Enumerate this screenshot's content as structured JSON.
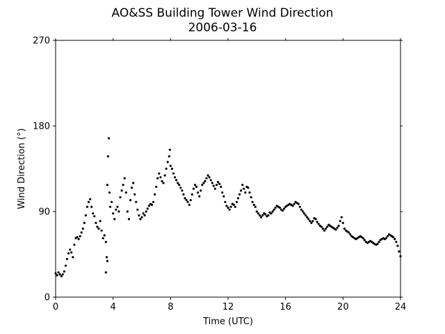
{
  "chart_data": {
    "type": "scatter",
    "title": "AO&SS Building Tower Wind Direction",
    "subtitle": "2006-03-16",
    "xlabel": "Time (UTC)",
    "ylabel": "Wind Direction (°)",
    "xlim": [
      0,
      24
    ],
    "ylim": [
      0,
      270
    ],
    "xticks": [
      0,
      4,
      8,
      12,
      16,
      20,
      24
    ],
    "yticks": [
      0,
      90,
      180,
      270
    ],
    "grid": false,
    "marker_color": "#000000",
    "series": [
      {
        "points": [
          [
            0.0,
            25
          ],
          [
            0.1,
            23
          ],
          [
            0.2,
            26
          ],
          [
            0.3,
            24
          ],
          [
            0.4,
            22
          ],
          [
            0.5,
            24
          ],
          [
            0.6,
            27
          ],
          [
            0.7,
            33
          ],
          [
            0.8,
            40
          ],
          [
            0.9,
            46
          ],
          [
            1.0,
            50
          ],
          [
            1.1,
            47
          ],
          [
            1.2,
            42
          ],
          [
            1.3,
            55
          ],
          [
            1.4,
            62
          ],
          [
            1.5,
            63
          ],
          [
            1.6,
            61
          ],
          [
            1.7,
            64
          ],
          [
            1.8,
            68
          ],
          [
            1.9,
            72
          ],
          [
            2.0,
            78
          ],
          [
            2.1,
            86
          ],
          [
            2.2,
            95
          ],
          [
            2.3,
            100
          ],
          [
            2.4,
            103
          ],
          [
            2.5,
            95
          ],
          [
            2.6,
            88
          ],
          [
            2.7,
            85
          ],
          [
            2.8,
            78
          ],
          [
            2.9,
            74
          ],
          [
            3.0,
            72
          ],
          [
            3.1,
            80
          ],
          [
            3.2,
            70
          ],
          [
            3.3,
            62
          ],
          [
            3.4,
            65
          ],
          [
            3.5,
            58
          ],
          [
            3.5,
            26
          ],
          [
            3.55,
            42
          ],
          [
            3.6,
            38
          ],
          [
            3.6,
            118
          ],
          [
            3.65,
            148
          ],
          [
            3.7,
            167
          ],
          [
            3.75,
            110
          ],
          [
            3.8,
            95
          ],
          [
            3.9,
            100
          ],
          [
            4.0,
            88
          ],
          [
            4.1,
            82
          ],
          [
            4.2,
            92
          ],
          [
            4.3,
            95
          ],
          [
            4.4,
            90
          ],
          [
            4.5,
            105
          ],
          [
            4.6,
            112
          ],
          [
            4.7,
            118
          ],
          [
            4.8,
            125
          ],
          [
            4.9,
            110
          ],
          [
            5.0,
            90
          ],
          [
            5.1,
            82
          ],
          [
            5.2,
            102
          ],
          [
            5.3,
            115
          ],
          [
            5.4,
            120
          ],
          [
            5.5,
            108
          ],
          [
            5.6,
            100
          ],
          [
            5.7,
            92
          ],
          [
            5.8,
            86
          ],
          [
            5.9,
            82
          ],
          [
            6.0,
            84
          ],
          [
            6.1,
            88
          ],
          [
            6.2,
            86
          ],
          [
            6.3,
            90
          ],
          [
            6.4,
            93
          ],
          [
            6.5,
            96
          ],
          [
            6.6,
            98
          ],
          [
            6.7,
            97
          ],
          [
            6.8,
            100
          ],
          [
            6.9,
            108
          ],
          [
            7.0,
            116
          ],
          [
            7.1,
            125
          ],
          [
            7.2,
            130
          ],
          [
            7.3,
            126
          ],
          [
            7.4,
            122
          ],
          [
            7.5,
            120
          ],
          [
            7.6,
            128
          ],
          [
            7.7,
            135
          ],
          [
            7.8,
            142
          ],
          [
            7.9,
            148
          ],
          [
            7.95,
            155
          ],
          [
            8.0,
            138
          ],
          [
            8.1,
            135
          ],
          [
            8.2,
            130
          ],
          [
            8.3,
            126
          ],
          [
            8.4,
            123
          ],
          [
            8.5,
            120
          ],
          [
            8.6,
            118
          ],
          [
            8.7,
            115
          ],
          [
            8.8,
            112
          ],
          [
            8.9,
            108
          ],
          [
            9.0,
            104
          ],
          [
            9.1,
            102
          ],
          [
            9.2,
            100
          ],
          [
            9.3,
            97
          ],
          [
            9.4,
            102
          ],
          [
            9.5,
            108
          ],
          [
            9.6,
            114
          ],
          [
            9.7,
            118
          ],
          [
            9.8,
            116
          ],
          [
            9.9,
            110
          ],
          [
            10.0,
            106
          ],
          [
            10.1,
            112
          ],
          [
            10.2,
            118
          ],
          [
            10.3,
            120
          ],
          [
            10.4,
            122
          ],
          [
            10.5,
            125
          ],
          [
            10.6,
            128
          ],
          [
            10.7,
            126
          ],
          [
            10.8,
            123
          ],
          [
            10.9,
            120
          ],
          [
            11.0,
            117
          ],
          [
            11.1,
            114
          ],
          [
            11.2,
            118
          ],
          [
            11.3,
            121
          ],
          [
            11.4,
            119
          ],
          [
            11.5,
            116
          ],
          [
            11.6,
            110
          ],
          [
            11.7,
            106
          ],
          [
            11.8,
            100
          ],
          [
            11.9,
            96
          ],
          [
            12.0,
            94
          ],
          [
            12.1,
            92
          ],
          [
            12.2,
            95
          ],
          [
            12.3,
            98
          ],
          [
            12.4,
            97
          ],
          [
            12.5,
            95
          ],
          [
            12.6,
            100
          ],
          [
            12.7,
            104
          ],
          [
            12.8,
            108
          ],
          [
            12.9,
            112
          ],
          [
            13.0,
            118
          ],
          [
            13.1,
            114
          ],
          [
            13.2,
            110
          ],
          [
            13.3,
            116
          ],
          [
            13.4,
            115
          ],
          [
            13.5,
            110
          ],
          [
            13.6,
            105
          ],
          [
            13.7,
            100
          ],
          [
            13.8,
            97
          ],
          [
            13.9,
            95
          ],
          [
            14.0,
            90
          ],
          [
            14.1,
            88
          ],
          [
            14.2,
            86
          ],
          [
            14.3,
            84
          ],
          [
            14.4,
            86
          ],
          [
            14.5,
            88
          ],
          [
            14.6,
            87
          ],
          [
            14.7,
            85
          ],
          [
            14.8,
            86
          ],
          [
            14.9,
            89
          ],
          [
            15.0,
            88
          ],
          [
            15.1,
            90
          ],
          [
            15.2,
            92
          ],
          [
            15.3,
            94
          ],
          [
            15.4,
            96
          ],
          [
            15.5,
            95
          ],
          [
            15.6,
            94
          ],
          [
            15.7,
            92
          ],
          [
            15.8,
            91
          ],
          [
            15.9,
            93
          ],
          [
            16.0,
            95
          ],
          [
            16.1,
            96
          ],
          [
            16.2,
            97
          ],
          [
            16.3,
            98
          ],
          [
            16.4,
            97
          ],
          [
            16.5,
            96
          ],
          [
            16.6,
            98
          ],
          [
            16.7,
            100
          ],
          [
            16.8,
            99
          ],
          [
            16.9,
            98
          ],
          [
            17.0,
            95
          ],
          [
            17.1,
            92
          ],
          [
            17.2,
            90
          ],
          [
            17.3,
            88
          ],
          [
            17.4,
            86
          ],
          [
            17.5,
            84
          ],
          [
            17.6,
            82
          ],
          [
            17.7,
            80
          ],
          [
            17.8,
            78
          ],
          [
            17.9,
            80
          ],
          [
            18.0,
            83
          ],
          [
            18.1,
            82
          ],
          [
            18.2,
            79
          ],
          [
            18.3,
            77
          ],
          [
            18.4,
            75
          ],
          [
            18.5,
            74
          ],
          [
            18.6,
            72
          ],
          [
            18.7,
            70
          ],
          [
            18.8,
            72
          ],
          [
            18.9,
            74
          ],
          [
            19.0,
            76
          ],
          [
            19.1,
            75
          ],
          [
            19.2,
            74
          ],
          [
            19.3,
            73
          ],
          [
            19.4,
            72
          ],
          [
            19.5,
            71
          ],
          [
            19.6,
            73
          ],
          [
            19.7,
            75
          ],
          [
            19.8,
            80
          ],
          [
            19.9,
            84
          ],
          [
            20.0,
            78
          ],
          [
            20.1,
            72
          ],
          [
            20.2,
            70
          ],
          [
            20.3,
            69
          ],
          [
            20.4,
            68
          ],
          [
            20.5,
            66
          ],
          [
            20.6,
            64
          ],
          [
            20.7,
            63
          ],
          [
            20.8,
            62
          ],
          [
            20.9,
            61
          ],
          [
            21.0,
            62
          ],
          [
            21.1,
            63
          ],
          [
            21.2,
            64
          ],
          [
            21.3,
            63
          ],
          [
            21.4,
            62
          ],
          [
            21.5,
            60
          ],
          [
            21.6,
            58
          ],
          [
            21.7,
            57
          ],
          [
            21.8,
            58
          ],
          [
            21.9,
            59
          ],
          [
            22.0,
            58
          ],
          [
            22.1,
            57
          ],
          [
            22.2,
            56
          ],
          [
            22.3,
            55
          ],
          [
            22.4,
            56
          ],
          [
            22.5,
            58
          ],
          [
            22.6,
            60
          ],
          [
            22.7,
            61
          ],
          [
            22.8,
            62
          ],
          [
            22.9,
            61
          ],
          [
            23.0,
            62
          ],
          [
            23.1,
            64
          ],
          [
            23.2,
            66
          ],
          [
            23.3,
            65
          ],
          [
            23.4,
            64
          ],
          [
            23.5,
            63
          ],
          [
            23.6,
            61
          ],
          [
            23.7,
            58
          ],
          [
            23.8,
            54
          ],
          [
            23.9,
            48
          ],
          [
            24.0,
            43
          ]
        ]
      }
    ]
  }
}
